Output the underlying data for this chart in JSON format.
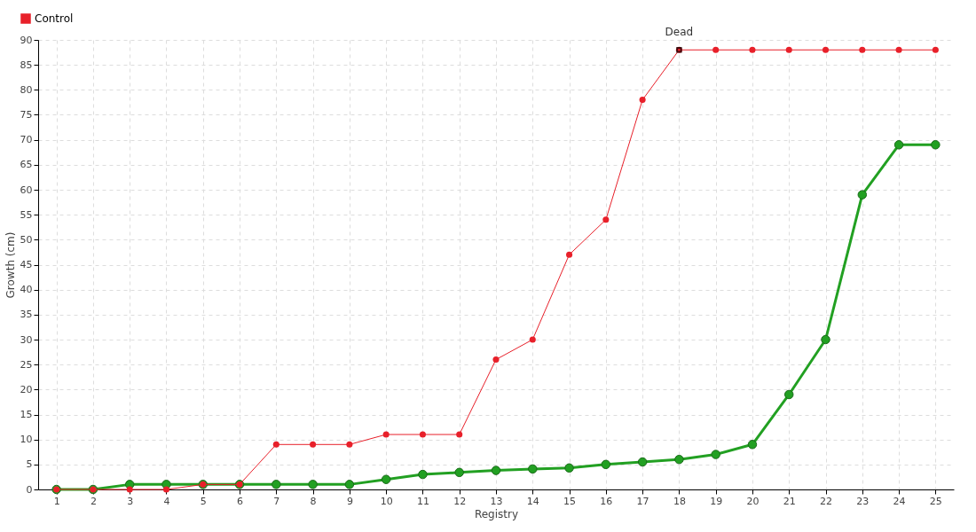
{
  "chart_data": {
    "type": "line",
    "xlabel": "Registry",
    "ylabel": "Growth (cm)",
    "x": [
      1,
      2,
      3,
      4,
      5,
      6,
      7,
      8,
      9,
      10,
      11,
      12,
      13,
      14,
      15,
      16,
      17,
      18,
      19,
      20,
      21,
      22,
      23,
      24,
      25
    ],
    "series": [
      {
        "color": "#22a022",
        "values": [
          0,
          0,
          1,
          1,
          1,
          1,
          1,
          1,
          1,
          2,
          3,
          3.4,
          3.8,
          4.1,
          4.3,
          5,
          5.5,
          6,
          7,
          9,
          19,
          30,
          59,
          69,
          69
        ]
      },
      {
        "name": "Control",
        "color": "#e8202a",
        "values": [
          0,
          0,
          0,
          0,
          1,
          1,
          9,
          9,
          9,
          11,
          11,
          11,
          26,
          30,
          47,
          54,
          78,
          88,
          88,
          88,
          88,
          88,
          88,
          88,
          88
        ]
      }
    ],
    "xlim": [
      0.5,
      25.5
    ],
    "xticks": [
      1,
      2,
      3,
      4,
      5,
      6,
      7,
      8,
      9,
      10,
      11,
      12,
      13,
      14,
      15,
      16,
      17,
      18,
      19,
      20,
      21,
      22,
      23,
      24,
      25
    ],
    "ylim": [
      0,
      90
    ],
    "yticks": [
      0,
      5,
      10,
      15,
      20,
      25,
      30,
      35,
      40,
      45,
      50,
      55,
      60,
      65,
      70,
      75,
      80,
      85,
      90
    ],
    "annotations": [
      {
        "text": "Dead",
        "x": 18,
        "y": 88
      }
    ],
    "grid": true,
    "legend": "top left",
    "marker": "circle",
    "line_style": "solid"
  }
}
